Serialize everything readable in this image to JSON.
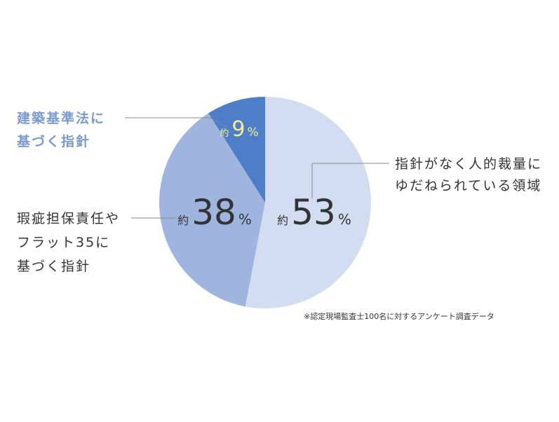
{
  "chart_data": {
    "type": "pie",
    "slices": [
      {
        "label_lines": [
          "指針がなく人的裁量に",
          "ゆだねられている領域"
        ],
        "prefix": "約",
        "value": 53,
        "unit": "%",
        "color": "#d3ddf1"
      },
      {
        "label_lines": [
          "瑕疵担保責任や",
          "フラット35に",
          "基づく指針"
        ],
        "prefix": "約",
        "value": 38,
        "unit": "%",
        "color": "#9fb5e0"
      },
      {
        "label_lines": [
          "建築基準法に",
          "基づく指針"
        ],
        "prefix": "約",
        "value": 9,
        "unit": "%",
        "color": "#4f7ec8"
      }
    ],
    "source_note": "※認定現場監査士100名に対するアンケート調査データ"
  }
}
